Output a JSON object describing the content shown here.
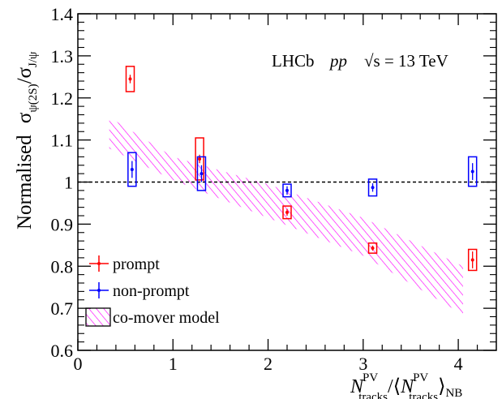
{
  "chart_data": {
    "type": "scatter",
    "title": "",
    "annotation": {
      "experiment": "LHCb",
      "system": "pp",
      "energy": "√s = 13 TeV"
    },
    "ylabel": {
      "prefix": "Normalised",
      "sigma1": "σ",
      "sub1": "ψ(2S)",
      "sep": "/",
      "sigma2": "σ",
      "sub2": "J/ψ"
    },
    "xlabel": {
      "N": "N",
      "sup": "PV",
      "sub": "tracks",
      "mid": "/⟨",
      "N2": "N",
      "sup2": "PV",
      "sub2": "tracks",
      "close": "⟩",
      "subNB": "NB"
    },
    "xlim": [
      0,
      4.4
    ],
    "ylim": [
      0.6,
      1.4
    ],
    "x_ticks": [
      "0",
      "1",
      "2",
      "3",
      "4"
    ],
    "y_ticks": [
      "0.6",
      "0.7",
      "0.8",
      "0.9",
      "1",
      "1.1",
      "1.2",
      "1.3",
      "1.4"
    ],
    "reference_line": 1.0,
    "series": [
      {
        "name": "prompt",
        "color": "#ff0000",
        "points": [
          {
            "x": 0.55,
            "y": 1.245,
            "stat": 0.01,
            "sys": 0.03
          },
          {
            "x": 1.28,
            "y": 1.055,
            "stat": 0.01,
            "sys": 0.05
          },
          {
            "x": 2.2,
            "y": 0.928,
            "stat": 0.008,
            "sys": 0.015
          },
          {
            "x": 3.1,
            "y": 0.843,
            "stat": 0.006,
            "sys": 0.012
          },
          {
            "x": 4.15,
            "y": 0.815,
            "stat": 0.02,
            "sys": 0.025
          }
        ]
      },
      {
        "name": "non-prompt",
        "color": "#0000ff",
        "points": [
          {
            "x": 0.57,
            "y": 1.03,
            "stat": 0.02,
            "sys": 0.04
          },
          {
            "x": 1.3,
            "y": 1.02,
            "stat": 0.02,
            "sys": 0.04
          },
          {
            "x": 2.2,
            "y": 0.98,
            "stat": 0.01,
            "sys": 0.015
          },
          {
            "x": 3.1,
            "y": 0.987,
            "stat": 0.01,
            "sys": 0.02
          },
          {
            "x": 4.15,
            "y": 1.025,
            "stat": 0.02,
            "sys": 0.035
          }
        ]
      }
    ],
    "band": {
      "name": "co-mover model",
      "color": "#ff00ff",
      "upper": [
        [
          0.33,
          1.155
        ],
        [
          1.0,
          1.06
        ],
        [
          2.0,
          0.995
        ],
        [
          3.0,
          0.915
        ],
        [
          4.05,
          0.8
        ]
      ],
      "lower": [
        [
          0.33,
          1.08
        ],
        [
          1.0,
          1.005
        ],
        [
          2.0,
          0.915
        ],
        [
          3.0,
          0.825
        ],
        [
          4.05,
          0.685
        ]
      ]
    },
    "legend": {
      "position": "bottom-left",
      "entries": [
        "prompt",
        "non-prompt",
        "co-mover model"
      ]
    }
  }
}
